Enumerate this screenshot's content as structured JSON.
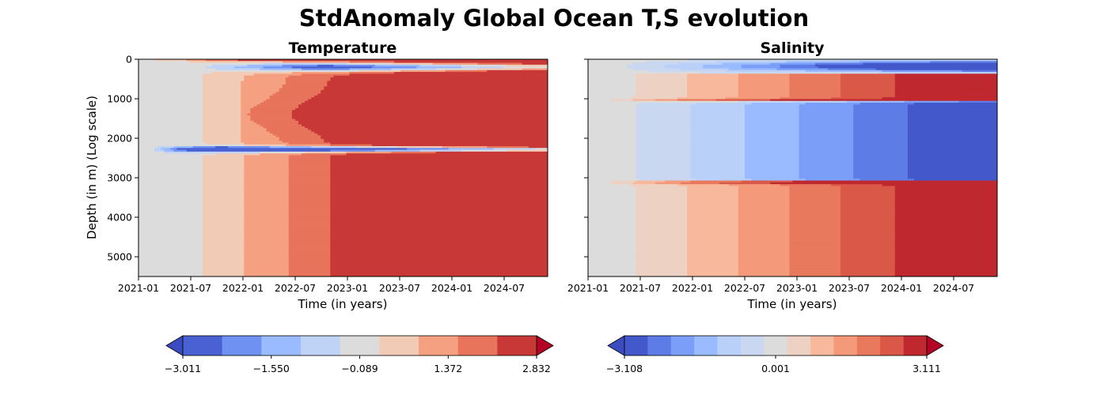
{
  "figure": {
    "title": "StdAnomaly Global Ocean T,S evolution"
  },
  "chart_data": [
    {
      "type": "heatmap",
      "title": "Temperature",
      "xlabel": "Time (in years)",
      "ylabel": "Depth (in m) (Log scale)",
      "x_ticks": [
        "2021-01",
        "2021-07",
        "2022-01",
        "2022-07",
        "2023-01",
        "2023-07",
        "2024-01",
        "2024-07"
      ],
      "x_range": [
        "2021-01",
        "2024-12"
      ],
      "y_ticks": [
        0,
        1000,
        2000,
        3000,
        4000,
        5000
      ],
      "y_range": [
        5500,
        0
      ],
      "colormap": "coolwarm",
      "levels": [
        -3.011,
        -2.524,
        -2.037,
        -1.55,
        -1.063,
        -0.576,
        -0.089,
        0.398,
        0.885,
        1.372,
        1.859,
        2.346,
        2.832
      ],
      "colorbar_ticks": [
        "−3.011",
        "−1.550",
        "−0.089",
        "1.372",
        "2.832"
      ],
      "extend": "both",
      "colors": [
        "#4961d2",
        "#6f91f2",
        "#9abbff",
        "#bfd3f6",
        "#dddcdc",
        "#f2cbb7",
        "#f5a081",
        "#e7745b",
        "#c83836"
      ],
      "extend_colors": [
        "#3b4cc0",
        "#b40426"
      ]
    },
    {
      "type": "heatmap",
      "title": "Salinity",
      "xlabel": "Time (in years)",
      "ylabel": "",
      "x_ticks": [
        "2021-01",
        "2021-07",
        "2022-01",
        "2022-07",
        "2023-01",
        "2023-07",
        "2024-01",
        "2024-07"
      ],
      "x_range": [
        "2021-01",
        "2024-12"
      ],
      "y_range": [
        5500,
        0
      ],
      "colormap": "coolwarm",
      "levels": [
        -3.108,
        -2.665,
        -2.222,
        -1.779,
        -1.335,
        -0.889,
        -0.444,
        0.001,
        0.446,
        0.891,
        1.336,
        1.781,
        2.226,
        2.671,
        3.111
      ],
      "colorbar_ticks": [
        "−3.108",
        "0.001",
        "3.111"
      ],
      "extend": "both",
      "colors": [
        "#4358cb",
        "#5d7ce6",
        "#7b9ff9",
        "#9abbff",
        "#b9d0f9",
        "#c9d7f0",
        "#dddcdc",
        "#edd1c2",
        "#f7b89c",
        "#f49a7b",
        "#e8795d",
        "#d95847",
        "#c0282f"
      ],
      "extend_colors": [
        "#3b4cc0",
        "#b40426"
      ]
    }
  ]
}
